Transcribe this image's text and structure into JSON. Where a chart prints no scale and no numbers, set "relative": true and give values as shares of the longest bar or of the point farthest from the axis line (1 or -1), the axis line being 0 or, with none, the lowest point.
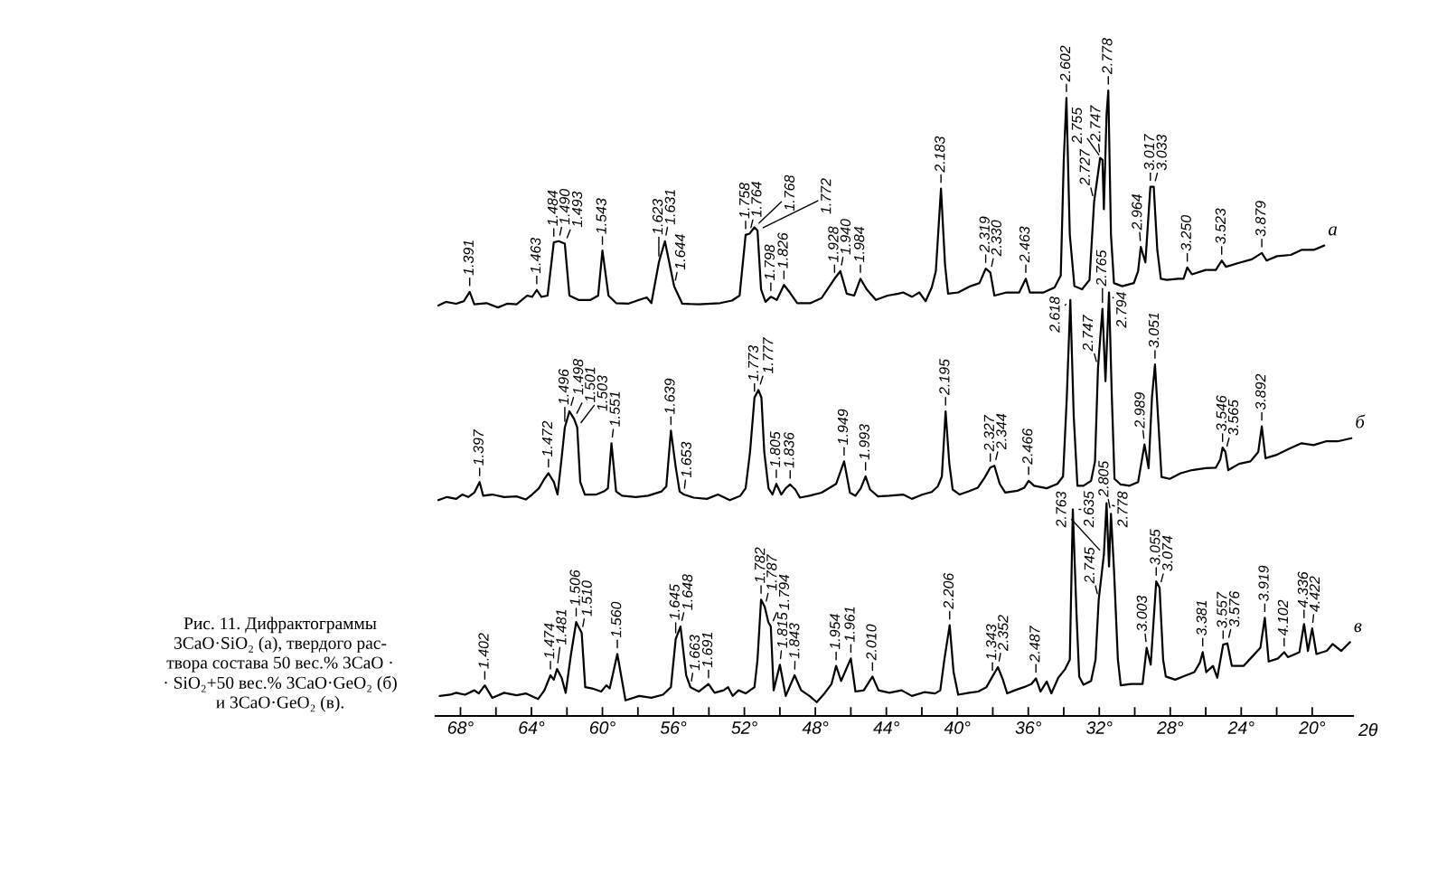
{
  "chart_data": {
    "type": "line",
    "relative": true,
    "xlim": [
      69.4,
      17.7
    ],
    "tick_labels": "x",
    "xlabel": "2θ",
    "xticks": [
      {
        "value": 68,
        "label": "68°"
      },
      {
        "value": 66,
        "label": null
      },
      {
        "value": 64,
        "label": "64°"
      },
      {
        "value": 62,
        "label": null
      },
      {
        "value": 60,
        "label": "60°"
      },
      {
        "value": 58,
        "label": null
      },
      {
        "value": 56,
        "label": "56°"
      },
      {
        "value": 54,
        "label": null
      },
      {
        "value": 52,
        "label": "52°"
      },
      {
        "value": 50,
        "label": null
      },
      {
        "value": 48,
        "label": "48°"
      },
      {
        "value": 46,
        "label": null
      },
      {
        "value": 44,
        "label": "44°"
      },
      {
        "value": 42,
        "label": null
      },
      {
        "value": 40,
        "label": "40°"
      },
      {
        "value": 38,
        "label": null
      },
      {
        "value": 36,
        "label": "36°"
      },
      {
        "value": 34,
        "label": null
      },
      {
        "value": 32,
        "label": "32°"
      },
      {
        "value": 30,
        "label": null
      },
      {
        "value": 28,
        "label": "28°"
      },
      {
        "value": 26,
        "label": null
      },
      {
        "value": 24,
        "label": "24°"
      },
      {
        "value": 22,
        "label": null
      },
      {
        "value": 20,
        "label": "20°"
      }
    ],
    "series": [
      {
        "name": "а",
        "color": "#000000",
        "x": [
          69.25,
          68.83,
          68.24,
          67.81,
          67.48,
          67.22,
          66.54,
          65.89,
          65.37,
          64.84,
          64.23,
          63.96,
          63.7,
          63.44,
          63.09,
          62.74,
          62.47,
          62.12,
          61.86,
          61.35,
          60.67,
          60.24,
          60.0,
          59.66,
          59.23,
          58.55,
          57.93,
          57.5,
          57.24,
          56.82,
          56.48,
          55.96,
          55.5,
          54.57,
          53.37,
          52.7,
          52.27,
          51.93,
          51.71,
          51.43,
          51.26,
          51.06,
          50.81,
          50.51,
          50.17,
          49.77,
          49.44,
          49.02,
          48.27,
          47.65,
          46.92,
          46.59,
          46.23,
          45.81,
          45.46,
          45.11,
          44.59,
          43.93,
          43.33,
          43.05,
          42.56,
          42.14,
          41.79,
          41.44,
          41.21,
          40.92,
          40.69,
          40.52,
          39.95,
          39.26,
          38.75,
          38.4,
          38.14,
          37.91,
          37.22,
          36.51,
          36.14,
          35.91,
          35.14,
          34.52,
          34.17,
          34.0,
          33.85,
          33.66,
          33.4,
          32.97,
          32.55,
          32.29,
          31.95,
          31.82,
          31.74,
          31.59,
          31.49,
          31.34,
          31.17,
          30.71,
          30.05,
          29.81,
          29.66,
          29.4,
          29.12,
          28.93,
          28.73,
          28.53,
          28.19,
          27.56,
          27.25,
          27.04,
          26.78,
          26.0,
          25.43,
          25.1,
          24.86,
          24.03,
          23.4,
          22.84,
          22.57,
          21.98,
          21.21,
          20.6,
          19.92,
          19.32
        ],
        "values": [
          0.656,
          0.662,
          0.659,
          0.663,
          0.678,
          0.658,
          0.66,
          0.653,
          0.659,
          0.658,
          0.672,
          0.67,
          0.681,
          0.67,
          0.672,
          0.757,
          0.759,
          0.755,
          0.672,
          0.665,
          0.665,
          0.672,
          0.744,
          0.672,
          0.66,
          0.659,
          0.665,
          0.669,
          0.66,
          0.725,
          0.759,
          0.687,
          0.659,
          0.658,
          0.66,
          0.664,
          0.672,
          0.769,
          0.771,
          0.781,
          0.776,
          0.682,
          0.662,
          0.67,
          0.665,
          0.689,
          0.677,
          0.66,
          0.66,
          0.668,
          0.699,
          0.711,
          0.675,
          0.672,
          0.699,
          0.682,
          0.665,
          0.672,
          0.675,
          0.677,
          0.67,
          0.677,
          0.663,
          0.685,
          0.711,
          0.843,
          0.721,
          0.675,
          0.677,
          0.687,
          0.692,
          0.715,
          0.709,
          0.672,
          0.677,
          0.677,
          0.699,
          0.677,
          0.677,
          0.685,
          0.704,
          0.889,
          0.988,
          0.769,
          0.687,
          0.682,
          0.697,
          0.822,
          0.892,
          0.889,
          0.81,
          0.961,
          1.0,
          0.769,
          0.692,
          0.687,
          0.692,
          0.711,
          0.75,
          0.725,
          0.846,
          0.846,
          0.745,
          0.699,
          0.697,
          0.699,
          0.699,
          0.717,
          0.706,
          0.713,
          0.713,
          0.728,
          0.718,
          0.725,
          0.73,
          0.74,
          0.728,
          0.735,
          0.737,
          0.745,
          0.745,
          0.752
        ]
      },
      {
        "name": "б",
        "color": "#000000",
        "x": [
          69.25,
          68.76,
          68.24,
          67.9,
          67.56,
          67.22,
          66.92,
          66.72,
          66.21,
          65.54,
          64.84,
          64.32,
          63.96,
          63.58,
          63.27,
          63.04,
          62.74,
          62.53,
          62.3,
          62.12,
          61.86,
          61.6,
          61.42,
          61.25,
          60.99,
          60.34,
          59.91,
          59.69,
          59.49,
          59.23,
          58.89,
          58.12,
          57.43,
          56.66,
          56.4,
          56.14,
          55.87,
          55.65,
          55.41,
          54.86,
          54.11,
          53.49,
          52.82,
          52.23,
          51.93,
          51.68,
          51.43,
          51.21,
          51.04,
          50.88,
          50.64,
          50.42,
          50.2,
          49.92,
          49.67,
          49.42,
          49.13,
          48.87,
          48.33,
          47.65,
          46.83,
          46.38,
          46.05,
          45.74,
          45.44,
          45.17,
          44.92,
          44.47,
          43.83,
          43.05,
          42.56,
          41.96,
          41.44,
          41.1,
          40.87,
          40.66,
          40.45,
          40.26,
          39.87,
          39.36,
          38.84,
          38.46,
          38.14,
          37.91,
          37.61,
          37.3,
          36.61,
          36.22,
          35.98,
          35.67,
          34.96,
          34.36,
          34.04,
          33.83,
          33.63,
          33.44,
          33.23,
          32.89,
          32.46,
          32.24,
          32.07,
          31.82,
          31.65,
          31.45,
          31.3,
          31.14,
          30.79,
          30.29,
          29.81,
          29.45,
          29.22,
          29.03,
          28.86,
          28.67,
          28.49,
          28.03,
          27.41,
          26.78,
          26.0,
          25.43,
          25.18,
          25.05,
          24.89,
          24.73,
          24.12,
          23.48,
          23.04,
          22.84,
          22.63,
          22.04,
          21.31,
          20.6,
          19.92,
          19.23,
          18.56,
          17.79
        ],
        "values": [
          0.345,
          0.35,
          0.347,
          0.354,
          0.35,
          0.357,
          0.374,
          0.352,
          0.354,
          0.35,
          0.351,
          0.346,
          0.354,
          0.364,
          0.379,
          0.388,
          0.374,
          0.354,
          0.412,
          0.461,
          0.487,
          0.475,
          0.461,
          0.374,
          0.354,
          0.354,
          0.359,
          0.364,
          0.436,
          0.359,
          0.352,
          0.35,
          0.352,
          0.359,
          0.367,
          0.456,
          0.398,
          0.359,
          0.354,
          0.349,
          0.347,
          0.354,
          0.345,
          0.352,
          0.364,
          0.422,
          0.509,
          0.521,
          0.509,
          0.422,
          0.364,
          0.354,
          0.371,
          0.354,
          0.364,
          0.37,
          0.362,
          0.349,
          0.352,
          0.357,
          0.371,
          0.407,
          0.357,
          0.352,
          0.364,
          0.383,
          0.362,
          0.351,
          0.352,
          0.354,
          0.347,
          0.354,
          0.358,
          0.367,
          0.383,
          0.487,
          0.403,
          0.362,
          0.354,
          0.359,
          0.365,
          0.381,
          0.397,
          0.4,
          0.371,
          0.357,
          0.36,
          0.365,
          0.376,
          0.368,
          0.364,
          0.371,
          0.383,
          0.509,
          0.665,
          0.48,
          0.368,
          0.368,
          0.376,
          0.407,
          0.557,
          0.651,
          0.535,
          0.677,
          0.518,
          0.379,
          0.37,
          0.368,
          0.374,
          0.434,
          0.396,
          0.509,
          0.562,
          0.47,
          0.382,
          0.379,
          0.388,
          0.393,
          0.396,
          0.397,
          0.41,
          0.429,
          0.422,
          0.393,
          0.403,
          0.407,
          0.422,
          0.463,
          0.412,
          0.417,
          0.427,
          0.436,
          0.433,
          0.439,
          0.439,
          0.444
        ]
      },
      {
        "name": "в",
        "color": "#000000",
        "x": [
          69.17,
          68.57,
          68.24,
          67.74,
          67.22,
          66.97,
          66.63,
          66.21,
          65.54,
          64.84,
          64.32,
          63.63,
          63.27,
          62.93,
          62.74,
          62.56,
          62.3,
          62.07,
          61.77,
          61.48,
          61.17,
          60.97,
          60.58,
          60.07,
          59.78,
          59.59,
          59.16,
          58.7,
          57.93,
          57.24,
          56.59,
          56.14,
          55.87,
          55.6,
          55.28,
          55.04,
          54.57,
          54.02,
          53.68,
          53.17,
          52.92,
          52.66,
          52.33,
          51.93,
          51.43,
          51.26,
          51.06,
          50.85,
          50.65,
          50.51,
          50.35,
          50.0,
          49.67,
          49.17,
          48.8,
          48.33,
          47.92,
          47.46,
          47.09,
          46.83,
          46.55,
          46.0,
          45.74,
          45.27,
          44.78,
          44.44,
          43.83,
          43.14,
          42.56,
          41.86,
          41.25,
          40.96,
          40.73,
          40.43,
          40.21,
          39.95,
          39.34,
          38.82,
          38.36,
          38.02,
          37.71,
          37.43,
          37.19,
          36.76,
          36.25,
          35.83,
          35.57,
          35.31,
          34.96,
          34.7,
          34.31,
          33.92,
          33.66,
          33.49,
          33.28,
          33.13,
          32.89,
          32.46,
          32.21,
          32.03,
          31.74,
          31.59,
          31.45,
          31.34,
          31.17,
          30.95,
          30.79,
          30.2,
          29.56,
          29.33,
          29.1,
          28.79,
          28.6,
          28.4,
          28.25,
          27.72,
          27.1,
          26.64,
          26.33,
          26.17,
          25.97,
          25.59,
          25.35,
          25.02,
          24.78,
          24.53,
          23.87,
          23.31,
          22.92,
          22.67,
          22.45,
          21.92,
          21.58,
          21.37,
          20.72,
          20.46,
          20.24,
          20.0,
          19.76,
          19.18,
          18.85,
          18.36,
          17.87
        ],
        "values": [
          0.032,
          0.034,
          0.037,
          0.034,
          0.041,
          0.036,
          0.049,
          0.029,
          0.037,
          0.033,
          0.036,
          0.027,
          0.041,
          0.065,
          0.058,
          0.075,
          0.061,
          0.037,
          0.099,
          0.15,
          0.133,
          0.046,
          0.044,
          0.039,
          0.049,
          0.044,
          0.099,
          0.025,
          0.032,
          0.029,
          0.034,
          0.046,
          0.123,
          0.143,
          0.065,
          0.046,
          0.039,
          0.051,
          0.037,
          0.041,
          0.046,
          0.032,
          0.041,
          0.036,
          0.046,
          0.09,
          0.186,
          0.174,
          0.15,
          0.143,
          0.041,
          0.082,
          0.032,
          0.065,
          0.041,
          0.032,
          0.022,
          0.037,
          0.051,
          0.08,
          0.056,
          0.092,
          0.039,
          0.041,
          0.063,
          0.041,
          0.037,
          0.041,
          0.032,
          0.038,
          0.036,
          0.041,
          0.09,
          0.145,
          0.07,
          0.034,
          0.037,
          0.039,
          0.046,
          0.063,
          0.078,
          0.058,
          0.036,
          0.041,
          0.046,
          0.051,
          0.06,
          0.039,
          0.055,
          0.036,
          0.061,
          0.075,
          0.09,
          0.33,
          0.162,
          0.063,
          0.05,
          0.056,
          0.09,
          0.186,
          0.258,
          0.34,
          0.239,
          0.323,
          0.234,
          0.09,
          0.049,
          0.051,
          0.051,
          0.109,
          0.082,
          0.215,
          0.205,
          0.09,
          0.063,
          0.058,
          0.065,
          0.07,
          0.085,
          0.102,
          0.07,
          0.08,
          0.061,
          0.114,
          0.116,
          0.08,
          0.08,
          0.097,
          0.109,
          0.157,
          0.087,
          0.092,
          0.102,
          0.094,
          0.102,
          0.147,
          0.104,
          0.14,
          0.099,
          0.104,
          0.115,
          0.104,
          0.118
        ]
      }
    ],
    "annotations": [
      {
        "text": "1.391",
        "x": 67.48,
        "y": 0.678
      },
      {
        "text": "1.463",
        "x": 63.7,
        "y": 0.681
      },
      {
        "text": "1.484",
        "x": 62.74,
        "y": 0.757
      },
      {
        "text": "1.490",
        "x": 62.47,
        "y": 0.759
      },
      {
        "text": "1.493",
        "x": 62.12,
        "y": 0.755
      },
      {
        "text": "1.543",
        "x": 60.0,
        "y": 0.744
      },
      {
        "text": "1.623",
        "x": 56.82,
        "y": 0.725
      },
      {
        "text": "1.631",
        "x": 56.48,
        "y": 0.759
      },
      {
        "text": "1.644",
        "x": 55.96,
        "y": 0.687
      },
      {
        "text": "1.758",
        "x": 51.93,
        "y": 0.769
      },
      {
        "text": "1.764",
        "x": 51.71,
        "y": 0.771
      },
      {
        "text": "1.768",
        "x": 51.43,
        "y": 0.781
      },
      {
        "text": "1.772",
        "x": 51.26,
        "y": 0.776
      },
      {
        "text": "1.798",
        "x": 50.51,
        "y": 0.67
      },
      {
        "text": "1.826",
        "x": 49.77,
        "y": 0.689
      },
      {
        "text": "1.928",
        "x": 46.92,
        "y": 0.699
      },
      {
        "text": "1.940",
        "x": 46.59,
        "y": 0.711
      },
      {
        "text": "1.984",
        "x": 45.46,
        "y": 0.699
      },
      {
        "text": "2.183",
        "x": 40.92,
        "y": 0.843
      },
      {
        "text": "2.319",
        "x": 38.4,
        "y": 0.715
      },
      {
        "text": "2.330",
        "x": 38.14,
        "y": 0.709
      },
      {
        "text": "2.463",
        "x": 36.14,
        "y": 0.699
      },
      {
        "text": "2.602",
        "x": 33.85,
        "y": 0.988
      },
      {
        "text": "2.727",
        "x": 32.29,
        "y": 0.822
      },
      {
        "text": "2.747",
        "x": 31.95,
        "y": 0.892
      },
      {
        "text": "2.755",
        "x": 31.82,
        "y": 0.889
      },
      {
        "text": "2.778",
        "x": 31.49,
        "y": 1.0
      },
      {
        "text": "2.964",
        "x": 29.66,
        "y": 0.75
      },
      {
        "text": "3.017",
        "x": 29.12,
        "y": 0.846
      },
      {
        "text": "3.033",
        "x": 28.93,
        "y": 0.846
      },
      {
        "text": "3.250",
        "x": 27.04,
        "y": 0.717
      },
      {
        "text": "3.523",
        "x": 25.1,
        "y": 0.728
      },
      {
        "text": "3.879",
        "x": 22.84,
        "y": 0.74
      },
      {
        "text": "1.397",
        "x": 66.92,
        "y": 0.374
      },
      {
        "text": "1.472",
        "x": 63.04,
        "y": 0.388
      },
      {
        "text": "1.496",
        "x": 62.12,
        "y": 0.461
      },
      {
        "text": "1.498",
        "x": 61.86,
        "y": 0.487
      },
      {
        "text": "1.501",
        "x": 61.6,
        "y": 0.475
      },
      {
        "text": "1.503",
        "x": 61.42,
        "y": 0.461
      },
      {
        "text": "1.551",
        "x": 59.49,
        "y": 0.436
      },
      {
        "text": "1.639",
        "x": 56.14,
        "y": 0.456
      },
      {
        "text": "1.653",
        "x": 55.41,
        "y": 0.354
      },
      {
        "text": "1.773",
        "x": 51.43,
        "y": 0.509
      },
      {
        "text": "1.777",
        "x": 51.21,
        "y": 0.521
      },
      {
        "text": "1.805",
        "x": 50.2,
        "y": 0.371
      },
      {
        "text": "1.836",
        "x": 49.42,
        "y": 0.37
      },
      {
        "text": "1.949",
        "x": 46.38,
        "y": 0.407
      },
      {
        "text": "1.993",
        "x": 45.17,
        "y": 0.383
      },
      {
        "text": "2.195",
        "x": 40.66,
        "y": 0.487
      },
      {
        "text": "2.327",
        "x": 38.14,
        "y": 0.397
      },
      {
        "text": "2.344",
        "x": 37.91,
        "y": 0.4
      },
      {
        "text": "2.466",
        "x": 35.98,
        "y": 0.376
      },
      {
        "text": "2.618",
        "x": 33.63,
        "y": 0.665
      },
      {
        "text": "2.747",
        "x": 32.07,
        "y": 0.557
      },
      {
        "text": "2.765",
        "x": 31.82,
        "y": 0.651
      },
      {
        "text": "2.794",
        "x": 31.45,
        "y": 0.677
      },
      {
        "text": "2.989",
        "x": 29.45,
        "y": 0.434
      },
      {
        "text": "3.051",
        "x": 28.86,
        "y": 0.562
      },
      {
        "text": "3.546",
        "x": 25.05,
        "y": 0.429
      },
      {
        "text": "3.565",
        "x": 24.89,
        "y": 0.422
      },
      {
        "text": "3.892",
        "x": 22.84,
        "y": 0.463
      },
      {
        "text": "1.402",
        "x": 66.63,
        "y": 0.049
      },
      {
        "text": "1.474",
        "x": 62.93,
        "y": 0.065
      },
      {
        "text": "1.481",
        "x": 62.56,
        "y": 0.075
      },
      {
        "text": "1.506",
        "x": 61.48,
        "y": 0.15
      },
      {
        "text": "1.510",
        "x": 61.17,
        "y": 0.133
      },
      {
        "text": "1.560",
        "x": 59.16,
        "y": 0.099
      },
      {
        "text": "1.645",
        "x": 55.87,
        "y": 0.123
      },
      {
        "text": "1.648",
        "x": 55.6,
        "y": 0.143
      },
      {
        "text": "1.663",
        "x": 55.04,
        "y": 0.046
      },
      {
        "text": "1.691",
        "x": 54.02,
        "y": 0.051
      },
      {
        "text": "1.782",
        "x": 51.06,
        "y": 0.186
      },
      {
        "text": "1.787",
        "x": 50.85,
        "y": 0.174
      },
      {
        "text": "1.794",
        "x": 50.51,
        "y": 0.143
      },
      {
        "text": "1.815",
        "x": 50.0,
        "y": 0.082
      },
      {
        "text": "1.843",
        "x": 49.17,
        "y": 0.065
      },
      {
        "text": "1.954",
        "x": 46.83,
        "y": 0.08
      },
      {
        "text": "1.961",
        "x": 46.0,
        "y": 0.092
      },
      {
        "text": "2.010",
        "x": 44.78,
        "y": 0.063
      },
      {
        "text": "2.206",
        "x": 40.43,
        "y": 0.145
      },
      {
        "text": "1.343",
        "x": 38.02,
        "y": 0.063
      },
      {
        "text": "2.352",
        "x": 37.71,
        "y": 0.078
      },
      {
        "text": "2.487",
        "x": 35.57,
        "y": 0.06
      },
      {
        "text": "2.635",
        "x": 33.49,
        "y": 0.33
      },
      {
        "text": "2.745",
        "x": 32.03,
        "y": 0.186
      },
      {
        "text": "2.763",
        "x": 31.74,
        "y": 0.258
      },
      {
        "text": "2.778",
        "x": 31.59,
        "y": 0.34
      },
      {
        "text": "2.805",
        "x": 31.34,
        "y": 0.323
      },
      {
        "text": "3.003",
        "x": 29.33,
        "y": 0.109
      },
      {
        "text": "3.055",
        "x": 28.79,
        "y": 0.215
      },
      {
        "text": "3.074",
        "x": 28.6,
        "y": 0.205
      },
      {
        "text": "3.381",
        "x": 26.17,
        "y": 0.102
      },
      {
        "text": "3.557",
        "x": 25.02,
        "y": 0.114
      },
      {
        "text": "3.576",
        "x": 24.78,
        "y": 0.116
      },
      {
        "text": "3.919",
        "x": 22.67,
        "y": 0.157
      },
      {
        "text": "4.102",
        "x": 21.58,
        "y": 0.102
      },
      {
        "text": "4.336",
        "x": 20.46,
        "y": 0.147
      },
      {
        "text": "4.422",
        "x": 20.0,
        "y": 0.14
      },
      "Рис. 11. Дифрактограммы\n3CaO·SiO₂ (а), твердого рас-\nтвора состава 50 вес.% 3CaO ·\n· SiO₂+50 вес.% 3CaO·GeO₂ (б)\nи 3CaO·GeO₂ (в)."
    ]
  }
}
